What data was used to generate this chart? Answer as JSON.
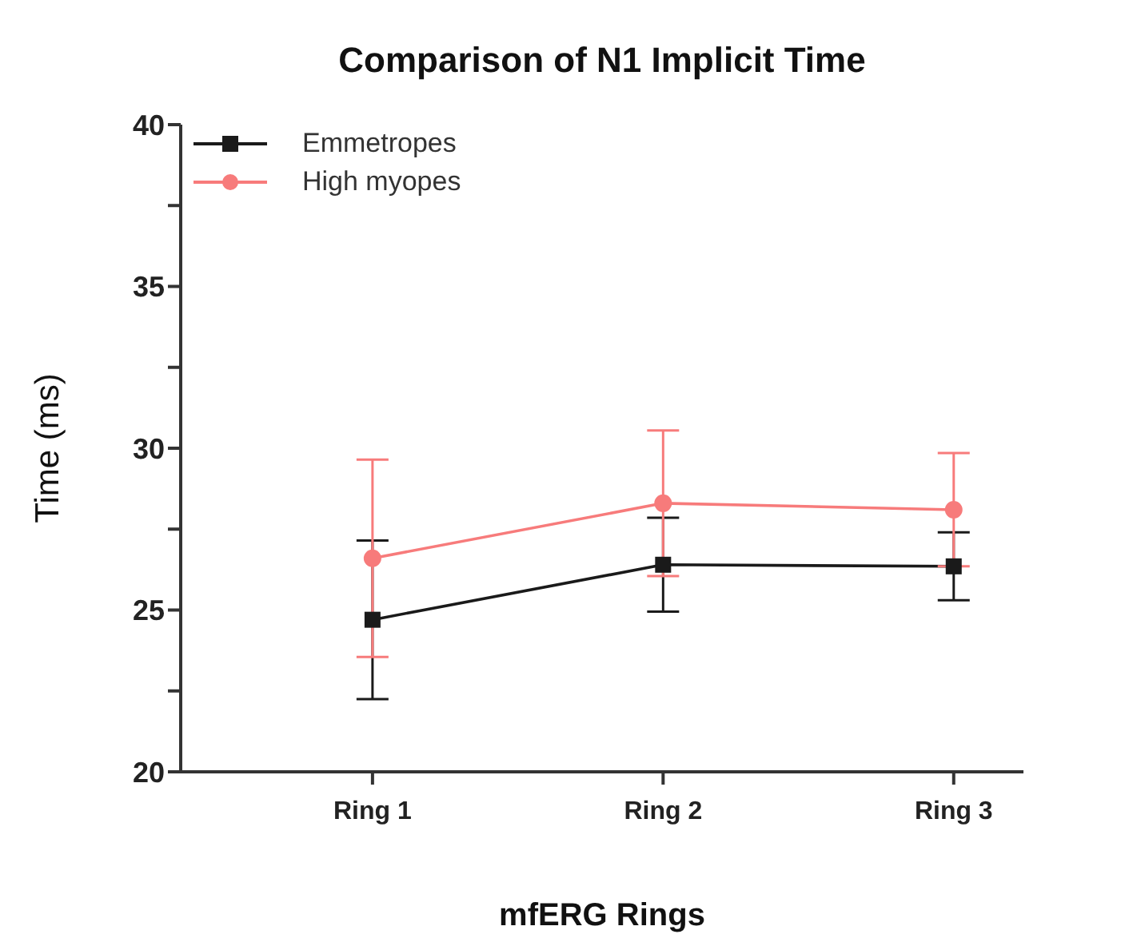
{
  "chart_data": {
    "type": "line",
    "title": "Comparison of N1 Implicit Time",
    "xlabel": "mfERG Rings",
    "ylabel": "Time (ms)",
    "categories": [
      "Ring 1",
      "Ring 2",
      "Ring 3"
    ],
    "series": [
      {
        "name": "Emmetropes",
        "color": "#1a1a1a",
        "marker": "square",
        "values": [
          24.7,
          26.4,
          26.35
        ],
        "errors": [
          2.45,
          1.45,
          1.05
        ]
      },
      {
        "name": "High myopes",
        "color": "#f77b7b",
        "marker": "circle",
        "values": [
          26.6,
          28.3,
          28.1
        ],
        "errors": [
          3.05,
          2.25,
          1.75
        ]
      }
    ],
    "ylim": [
      20,
      40
    ],
    "yticks": [
      20,
      {
        "value": 22.5,
        "label": null
      },
      25,
      {
        "value": 27.5,
        "label": null
      },
      30,
      {
        "value": 32.5,
        "label": null
      },
      35,
      {
        "value": 37.5,
        "label": null
      },
      40
    ],
    "grid": false,
    "legend": "top left"
  }
}
